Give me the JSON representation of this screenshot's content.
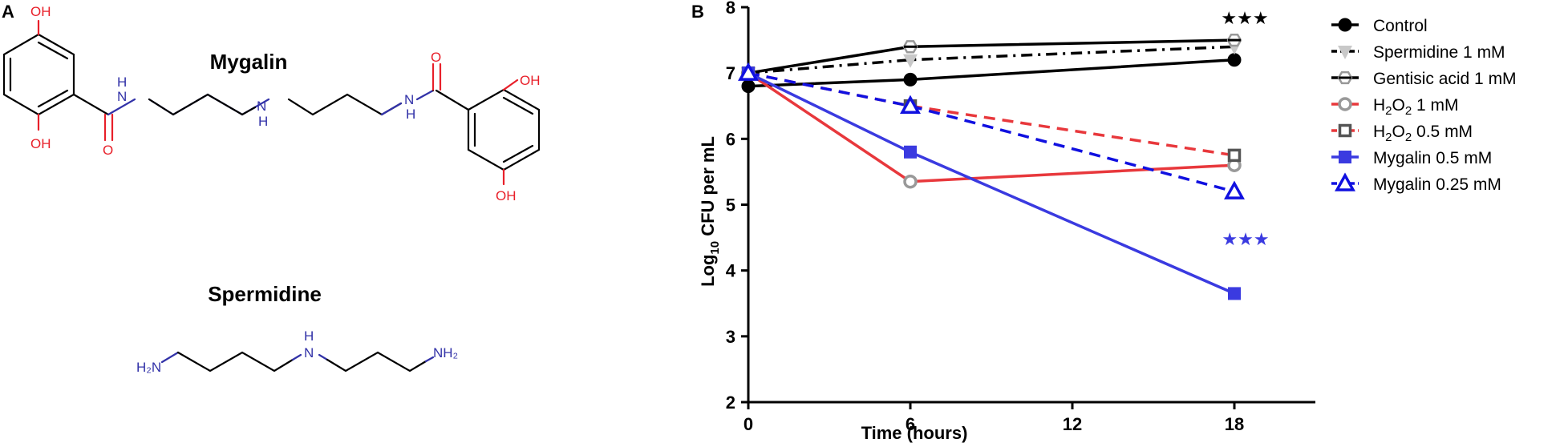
{
  "panel_a": {
    "label": "A",
    "mygalin": {
      "title": "Mygalin",
      "atoms": {
        "oh_top_left": "OH",
        "oh_bottom_left": "OH",
        "o_left": "O",
        "nh_left": "H",
        "n_left": "N",
        "nh_center": "H",
        "n_center": "N",
        "n_right": "N",
        "nh_right": "H",
        "o_right": "O",
        "oh_top_right": "OH",
        "oh_bottom_right": "OH"
      }
    },
    "spermidine": {
      "title": "Spermidine",
      "atoms": {
        "h2n_left": "H₂N",
        "h_center": "H",
        "n_center": "N",
        "nh2_right": "NH₂"
      }
    },
    "colors": {
      "oxygen": "#e8202a",
      "nitrogen": "#3232a8",
      "bond": "#000000"
    }
  },
  "panel_b": {
    "label": "B",
    "significance_black": "★★★",
    "significance_blue": "★★★"
  },
  "chart_data": {
    "type": "line",
    "xlabel": "Time (hours)",
    "ylabel_main": "Log",
    "ylabel_sub": "10",
    "ylabel_rest": " CFU per mL",
    "xlim": [
      0,
      21
    ],
    "ylim": [
      2,
      8
    ],
    "xticks": [
      0,
      6,
      12,
      18
    ],
    "yticks": [
      2,
      3,
      4,
      5,
      6,
      7,
      8
    ],
    "grid": false,
    "legend_position": "right",
    "series": [
      {
        "name": "Control",
        "name_parts": [
          "Control"
        ],
        "x": [
          0,
          6,
          18
        ],
        "y": [
          6.8,
          6.9,
          7.2
        ],
        "color": "#000000",
        "dash": "solid",
        "marker": "circle"
      },
      {
        "name": "Spermidine 1 mM",
        "name_parts": [
          "Spermidine 1 mM"
        ],
        "x": [
          0,
          6,
          18
        ],
        "y": [
          7.0,
          7.2,
          7.4
        ],
        "color": "#000000",
        "marker_color": "#c8c8c8",
        "dash": "dashdot",
        "marker": "triangle-down"
      },
      {
        "name": "Gentisic acid 1 mM",
        "name_parts": [
          "Gentisic acid 1 mM"
        ],
        "x": [
          0,
          6,
          18
        ],
        "y": [
          7.0,
          7.4,
          7.5
        ],
        "color": "#000000",
        "marker_color": "#999999",
        "dash": "solid",
        "marker": "hexagon-half"
      },
      {
        "name": "H2O2 1 mM",
        "name_parts": [
          "H",
          "2",
          "O",
          "2",
          " 1 mM"
        ],
        "x": [
          0,
          6,
          18
        ],
        "y": [
          7.0,
          5.35,
          5.6
        ],
        "color": "#e8383c",
        "marker_color": "#999999",
        "dash": "solid",
        "marker": "circle-open"
      },
      {
        "name": "H2O2 0.5 mM",
        "name_parts": [
          "H",
          "2",
          "O",
          "2",
          "  0.5 mM"
        ],
        "x": [
          0,
          6,
          18
        ],
        "y": [
          7.0,
          6.5,
          5.75
        ],
        "color": "#e8383c",
        "marker_color": "#555555",
        "dash": "dashed",
        "marker": "square-open"
      },
      {
        "name": "Mygalin 0.5 mM",
        "name_parts": [
          "Mygalin 0.5 mM"
        ],
        "x": [
          0,
          6,
          18
        ],
        "y": [
          7.0,
          5.8,
          3.65
        ],
        "color": "#3a3ae0",
        "dash": "solid",
        "marker": "square"
      },
      {
        "name": "Mygalin 0.25 mM",
        "name_parts": [
          "Mygalin 0.25 mM"
        ],
        "x": [
          0,
          6,
          18
        ],
        "y": [
          7.0,
          6.5,
          5.2
        ],
        "color": "#1010e0",
        "dash": "dashed",
        "marker": "triangle-open"
      }
    ]
  }
}
